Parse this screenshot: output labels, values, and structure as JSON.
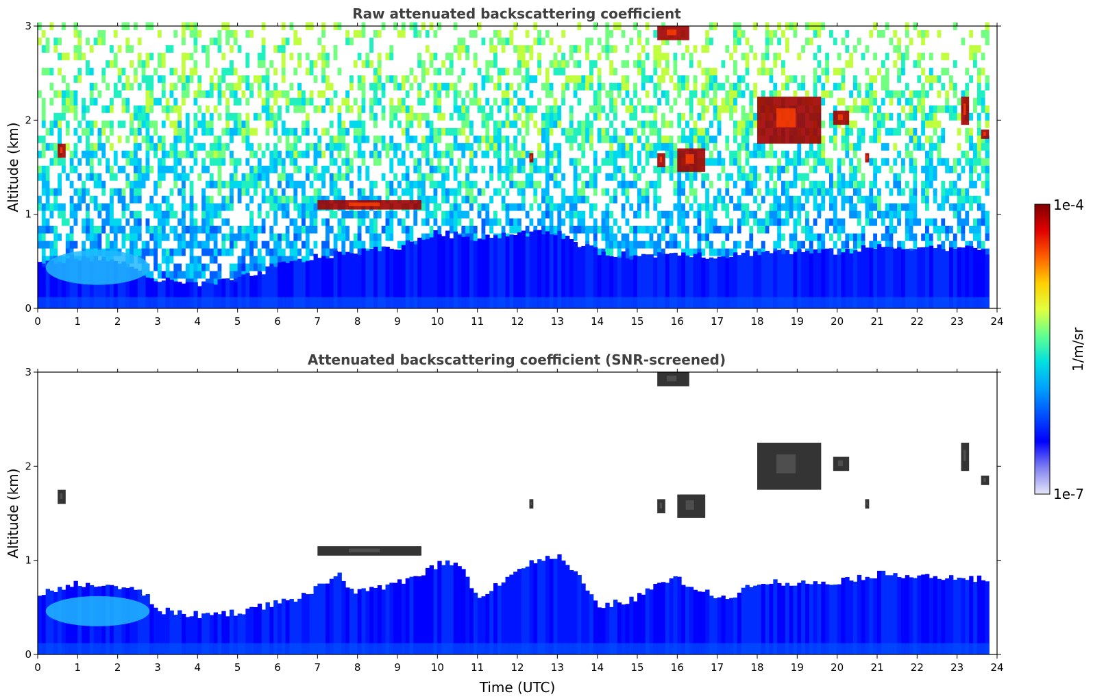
{
  "chart_data": [
    {
      "type": "heatmap",
      "title": "Raw attenuated backscattering coefficient",
      "xlabel": "",
      "ylabel": "Altitude (km)",
      "xlim": [
        0,
        24
      ],
      "ylim": [
        0,
        3
      ],
      "xticks": [
        "0",
        "1",
        "2",
        "3",
        "4",
        "5",
        "6",
        "7",
        "8",
        "9",
        "10",
        "11",
        "12",
        "13",
        "14",
        "15",
        "16",
        "17",
        "18",
        "19",
        "20",
        "21",
        "22",
        "23",
        "24"
      ],
      "yticks": [
        "0",
        "1",
        "2",
        "3"
      ],
      "boundary_layer_top_km": [
        [
          0,
          0.45
        ],
        [
          1,
          0.55
        ],
        [
          2,
          0.5
        ],
        [
          3,
          0.3
        ],
        [
          4,
          0.25
        ],
        [
          5,
          0.3
        ],
        [
          6,
          0.45
        ],
        [
          7,
          0.55
        ],
        [
          8,
          0.6
        ],
        [
          9,
          0.65
        ],
        [
          10,
          0.8
        ],
        [
          11,
          0.75
        ],
        [
          12,
          0.8
        ],
        [
          13,
          0.8
        ],
        [
          14,
          0.6
        ],
        [
          15,
          0.55
        ],
        [
          16,
          0.6
        ],
        [
          17,
          0.55
        ],
        [
          18,
          0.6
        ],
        [
          19,
          0.6
        ],
        [
          20,
          0.6
        ],
        [
          21,
          0.65
        ],
        [
          22,
          0.65
        ],
        [
          23,
          0.65
        ],
        [
          23.8,
          0.6
        ]
      ],
      "residual_layer_km": {
        "time": [
          0.2,
          2.8
        ],
        "top": 0.62,
        "bottom": 0.25
      },
      "cloud_features": [
        {
          "time": [
            0.5,
            0.7
          ],
          "alt": [
            1.6,
            1.75
          ]
        },
        {
          "time": [
            7.0,
            9.6
          ],
          "alt": [
            1.05,
            1.15
          ]
        },
        {
          "time": [
            12.3,
            12.4
          ],
          "alt": [
            1.55,
            1.65
          ]
        },
        {
          "time": [
            15.5,
            15.7
          ],
          "alt": [
            1.5,
            1.65
          ]
        },
        {
          "time": [
            16.0,
            16.7
          ],
          "alt": [
            1.45,
            1.7
          ]
        },
        {
          "time": [
            15.5,
            16.3
          ],
          "alt": [
            2.85,
            3.0
          ]
        },
        {
          "time": [
            18.0,
            19.6
          ],
          "alt": [
            1.75,
            2.25
          ]
        },
        {
          "time": [
            19.9,
            20.3
          ],
          "alt": [
            1.95,
            2.1
          ]
        },
        {
          "time": [
            20.7,
            20.8
          ],
          "alt": [
            1.55,
            1.65
          ]
        },
        {
          "time": [
            23.1,
            23.3
          ],
          "alt": [
            1.95,
            2.25
          ]
        },
        {
          "time": [
            23.6,
            23.8
          ],
          "alt": [
            1.8,
            1.9
          ]
        }
      ],
      "data_end_time": 23.8
    },
    {
      "type": "heatmap",
      "title": "Attenuated backscattering coefficient (SNR-screened)",
      "xlabel": "Time (UTC)",
      "ylabel": "Altitude (km)",
      "xlim": [
        0,
        24
      ],
      "ylim": [
        0,
        3
      ],
      "xticks": [
        "0",
        "1",
        "2",
        "3",
        "4",
        "5",
        "6",
        "7",
        "8",
        "9",
        "10",
        "11",
        "12",
        "13",
        "14",
        "15",
        "16",
        "17",
        "18",
        "19",
        "20",
        "21",
        "22",
        "23",
        "24"
      ],
      "yticks": [
        "0",
        "1",
        "2",
        "3"
      ],
      "screened_layer_top_km": [
        [
          0,
          0.65
        ],
        [
          0.5,
          0.68
        ],
        [
          1,
          0.75
        ],
        [
          2,
          0.72
        ],
        [
          2.7,
          0.65
        ],
        [
          3,
          0.47
        ],
        [
          4,
          0.42
        ],
        [
          5,
          0.45
        ],
        [
          6,
          0.55
        ],
        [
          6.5,
          0.6
        ],
        [
          7,
          0.7
        ],
        [
          7.5,
          0.85
        ],
        [
          8,
          0.65
        ],
        [
          9,
          0.75
        ],
        [
          10,
          0.95
        ],
        [
          10.5,
          1.0
        ],
        [
          11,
          0.6
        ],
        [
          11.5,
          0.75
        ],
        [
          12,
          0.9
        ],
        [
          12.5,
          1.0
        ],
        [
          13,
          1.05
        ],
        [
          13.5,
          0.85
        ],
        [
          14,
          0.5
        ],
        [
          15,
          0.6
        ],
        [
          15.5,
          0.75
        ],
        [
          16,
          0.8
        ],
        [
          16.5,
          0.7
        ],
        [
          17,
          0.6
        ],
        [
          17.5,
          0.65
        ],
        [
          18,
          0.78
        ],
        [
          19,
          0.75
        ],
        [
          20,
          0.78
        ],
        [
          21,
          0.85
        ],
        [
          22,
          0.85
        ],
        [
          23,
          0.8
        ],
        [
          23.8,
          0.8
        ]
      ],
      "residual_layer_km": {
        "time": [
          0.2,
          2.8
        ],
        "top": 0.62,
        "bottom": 0.3
      },
      "cloud_features": [
        {
          "time": [
            0.5,
            0.7
          ],
          "alt": [
            1.6,
            1.75
          ]
        },
        {
          "time": [
            7.0,
            9.6
          ],
          "alt": [
            1.05,
            1.15
          ]
        },
        {
          "time": [
            12.3,
            12.4
          ],
          "alt": [
            1.55,
            1.65
          ]
        },
        {
          "time": [
            15.5,
            15.7
          ],
          "alt": [
            1.5,
            1.65
          ]
        },
        {
          "time": [
            16.0,
            16.7
          ],
          "alt": [
            1.45,
            1.7
          ]
        },
        {
          "time": [
            15.5,
            16.3
          ],
          "alt": [
            2.85,
            3.0
          ]
        },
        {
          "time": [
            18.0,
            19.6
          ],
          "alt": [
            1.75,
            2.25
          ]
        },
        {
          "time": [
            19.9,
            20.3
          ],
          "alt": [
            1.95,
            2.1
          ]
        },
        {
          "time": [
            20.7,
            20.8
          ],
          "alt": [
            1.55,
            1.65
          ]
        },
        {
          "time": [
            23.1,
            23.3
          ],
          "alt": [
            1.95,
            2.25
          ]
        },
        {
          "time": [
            23.6,
            23.8
          ],
          "alt": [
            1.8,
            1.9
          ]
        }
      ],
      "data_end_time": 23.8
    }
  ],
  "colorbar": {
    "label": "1/m/sr",
    "min_label": "1e-7",
    "max_label": "1e-4",
    "scale": "log",
    "colors": [
      "#e6e6f8",
      "#8080f0",
      "#0000ff",
      "#0050ff",
      "#00a0ff",
      "#00e0e0",
      "#60ff90",
      "#e0ff40",
      "#ffd000",
      "#ff6000",
      "#e00000",
      "#800000"
    ]
  }
}
